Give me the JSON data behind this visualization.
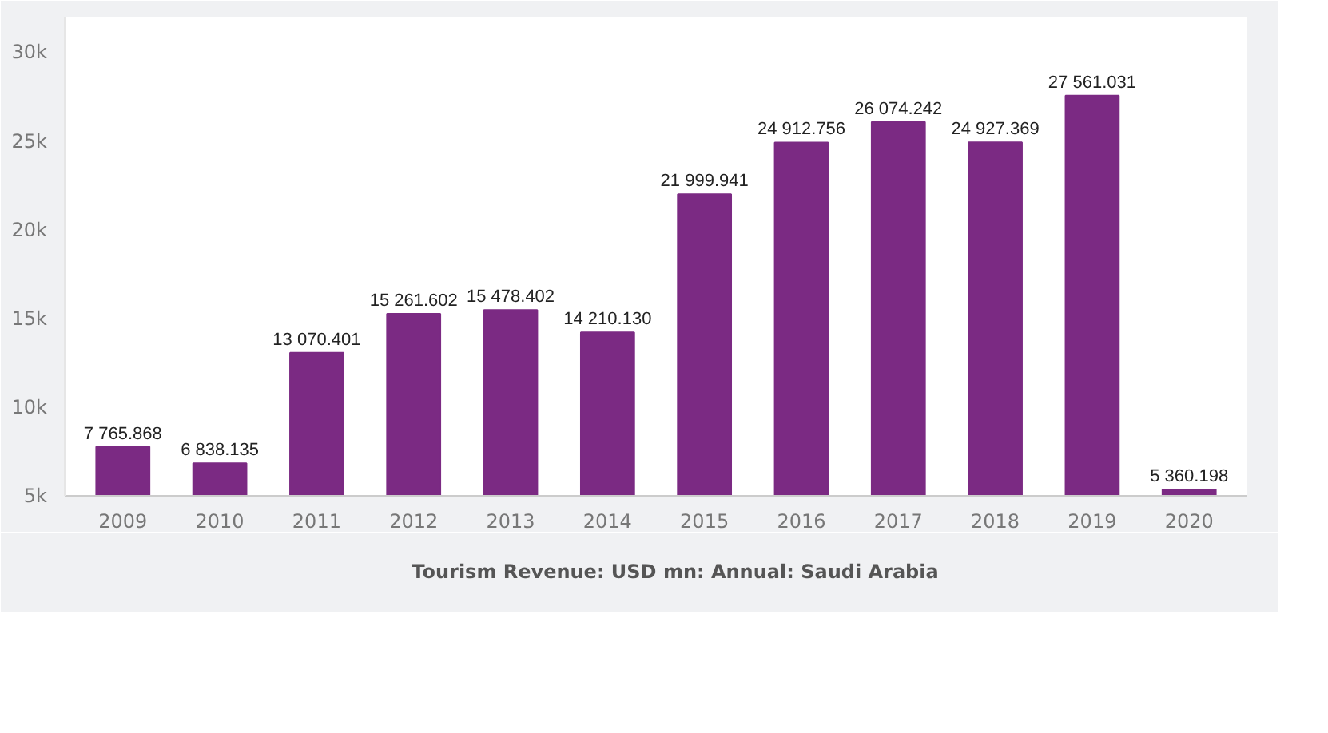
{
  "chart_data": {
    "type": "bar",
    "categories": [
      "2009",
      "2010",
      "2011",
      "2012",
      "2013",
      "2014",
      "2015",
      "2016",
      "2017",
      "2018",
      "2019",
      "2020"
    ],
    "series": [
      {
        "name": "Tourism Revenue: USD mn: Annual: Saudi Arabia",
        "color": "#7b2a83",
        "values": [
          7765.868,
          6838.135,
          13070.401,
          15261.602,
          15478.402,
          14210.13,
          21999.941,
          24912.756,
          26074.242,
          24927.369,
          27561.031,
          5360.198
        ],
        "value_labels": [
          "7 765.868",
          "6 838.135",
          "13 070.401",
          "15 261.602",
          "15 478.402",
          "14 210.130",
          "21 999.941",
          "24 912.756",
          "26 074.242",
          "24 927.369",
          "27 561.031",
          "5 360.198"
        ]
      }
    ],
    "ylim": [
      5000,
      32000
    ],
    "yticks": [
      {
        "value": 5000,
        "label": "5k"
      },
      {
        "value": 10000,
        "label": "10k"
      },
      {
        "value": 15000,
        "label": "15k"
      },
      {
        "value": 20000,
        "label": "20k"
      },
      {
        "value": 25000,
        "label": "25k"
      },
      {
        "value": 30000,
        "label": "30k"
      }
    ],
    "legend": "bottom"
  }
}
